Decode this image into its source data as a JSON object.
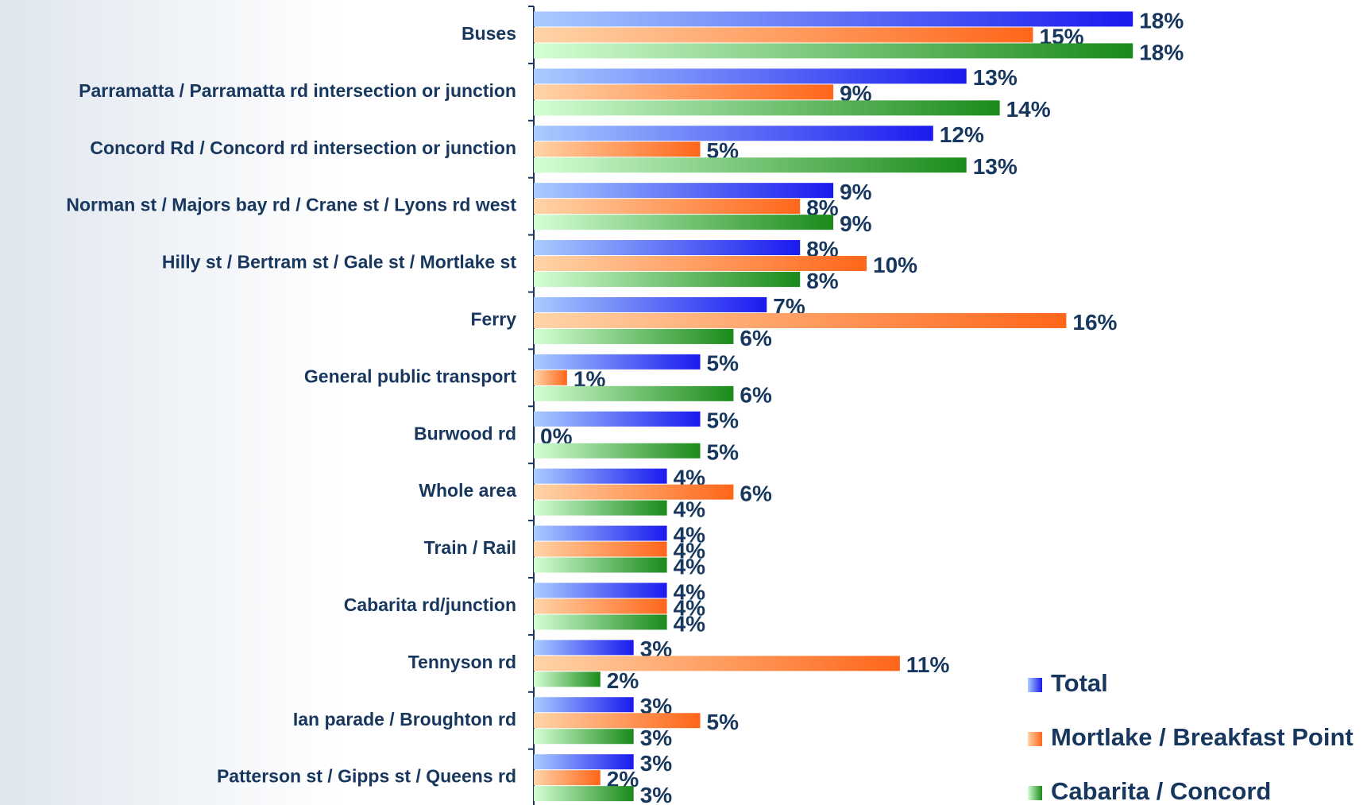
{
  "chart_data": {
    "type": "hbar",
    "categories": [
      "Buses",
      "Parramatta / Parramatta rd intersection or junction",
      "Concord Rd / Concord rd intersection or junction",
      "Norman st / Majors bay rd / Crane st / Lyons rd west",
      "Hilly st / Bertram st / Gale st / Mortlake st",
      "Ferry",
      "General public transport",
      "Burwood rd",
      "Whole area",
      "Train / Rail",
      "Cabarita rd/junction",
      "Tennyson rd",
      "Ian parade / Broughton rd",
      "Patterson st / Gipps st / Queens rd"
    ],
    "series": [
      {
        "name": "Total",
        "color": "#1a1aee",
        "values": [
          18,
          13,
          12,
          9,
          8,
          7,
          5,
          5,
          4,
          4,
          4,
          3,
          3,
          3
        ],
        "value_labels": [
          "18%",
          "13%",
          "12%",
          "9%",
          "8%",
          "7%",
          "5%",
          "5%",
          "4%",
          "4%",
          "4%",
          "3%",
          "3%",
          "3%"
        ]
      },
      {
        "name": "Mortlake / Breakfast Point",
        "color": "#ff661a",
        "values": [
          15,
          9,
          5,
          8,
          10,
          16,
          1,
          0,
          6,
          4,
          4,
          11,
          5,
          2
        ],
        "value_labels": [
          "15%",
          "9%",
          "5%",
          "8%",
          "10%",
          "16%",
          "1%",
          "0%",
          "6%",
          "4%",
          "4%",
          "11%",
          "5%",
          "2%"
        ]
      },
      {
        "name": "Cabarita / Concord",
        "color": "#1a8a1a",
        "values": [
          18,
          14,
          13,
          9,
          8,
          6,
          6,
          5,
          4,
          4,
          4,
          2,
          3,
          3
        ],
        "value_labels": [
          "18%",
          "14%",
          "13%",
          "9%",
          "8%",
          "6%",
          "6%",
          "5%",
          "4%",
          "4%",
          "4%",
          "2%",
          "3%",
          "3%"
        ]
      }
    ],
    "xlim": [
      0,
      20
    ]
  }
}
